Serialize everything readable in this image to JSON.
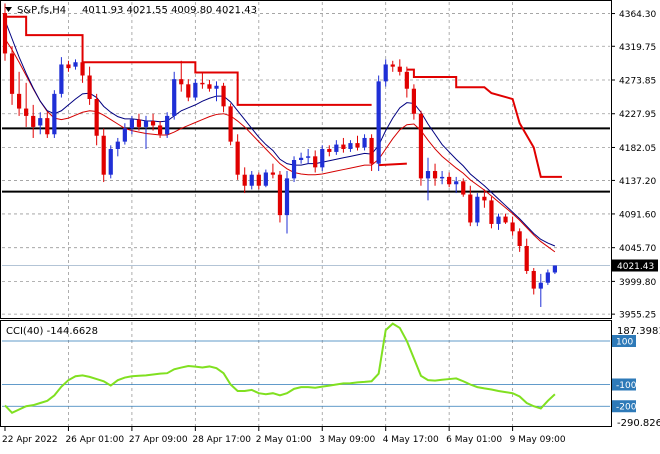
{
  "header": {
    "symbol_label": "S&P,fs,H4",
    "ohlc_label": "4011.93 4021.55 4009.80 4021.43"
  },
  "indicator": {
    "label": "CCI(40) -144.6628",
    "max_label": "187.3981",
    "min_label": "-290.8265"
  },
  "colors": {
    "bull": "#1f2fd6",
    "bear": "#e00000",
    "neutral": "#2a9a2a",
    "ma_fast": "#000080",
    "ma_slow": "#d40000",
    "trail": "#e00000",
    "cci": "#80e020",
    "level_line": "#2e7ab8",
    "grid": "#9a9a9a"
  },
  "chart_data": [
    {
      "type": "candlestick",
      "ylim": [
        3950,
        4380
      ],
      "y_ticks": [
        "4364.30",
        "4319.75",
        "4273.85",
        "4227.95",
        "4182.05",
        "4137.20",
        "4091.60",
        "4045.70",
        "3999.80",
        "3955.25"
      ],
      "current_price_label": "4021.43",
      "current_price": 4021.43,
      "horizontal_levels": [
        4208,
        4122
      ],
      "x_labels": [
        "22 Apr 2022",
        "26 Apr 01:00",
        "27 Apr 09:00",
        "28 Apr 17:00",
        "2 May 01:00",
        "3 May 09:00",
        "4 May 17:00",
        "6 May 01:00",
        "9 May 09:00"
      ],
      "candles": [
        [
          4365,
          4378,
          4300,
          4310
        ],
        [
          4310,
          4320,
          4240,
          4255
        ],
        [
          4255,
          4285,
          4225,
          4235
        ],
        [
          4235,
          4270,
          4210,
          4225
        ],
        [
          4225,
          4240,
          4195,
          4210
        ],
        [
          4212,
          4230,
          4200,
          4222
        ],
        [
          4222,
          4230,
          4195,
          4200
        ],
        [
          4200,
          4260,
          4195,
          4255
        ],
        [
          4255,
          4305,
          4250,
          4295
        ],
        [
          4295,
          4300,
          4285,
          4290
        ],
        [
          4292,
          4302,
          4288,
          4298
        ],
        [
          4298,
          4305,
          4270,
          4280
        ],
        [
          4280,
          4292,
          4240,
          4248
        ],
        [
          4248,
          4255,
          4185,
          4198
        ],
        [
          4198,
          4208,
          4135,
          4145
        ],
        [
          4145,
          4185,
          4140,
          4180
        ],
        [
          4180,
          4195,
          4170,
          4190
        ],
        [
          4190,
          4215,
          4186,
          4208
        ],
        [
          4208,
          4225,
          4200,
          4220
        ],
        [
          4220,
          4228,
          4205,
          4210
        ],
        [
          4210,
          4225,
          4180,
          4218
        ],
        [
          4218,
          4228,
          4205,
          4212
        ],
        [
          4212,
          4218,
          4195,
          4200
        ],
        [
          4200,
          4230,
          4195,
          4225
        ],
        [
          4225,
          4285,
          4220,
          4275
        ],
        [
          4275,
          4300,
          4258,
          4268
        ],
        [
          4268,
          4275,
          4245,
          4250
        ],
        [
          4250,
          4275,
          4246,
          4270
        ],
        [
          4270,
          4285,
          4262,
          4268
        ],
        [
          4268,
          4274,
          4258,
          4262
        ],
        [
          4262,
          4272,
          4245,
          4266
        ],
        [
          4266,
          4270,
          4230,
          4238
        ],
        [
          4238,
          4242,
          4185,
          4190
        ],
        [
          4190,
          4200,
          4138,
          4145
        ],
        [
          4145,
          4155,
          4120,
          4130
        ],
        [
          4130,
          4150,
          4125,
          4145
        ],
        [
          4145,
          4148,
          4125,
          4130
        ],
        [
          4130,
          4152,
          4128,
          4148
        ],
        [
          4148,
          4160,
          4140,
          4145
        ],
        [
          4145,
          4150,
          4080,
          4090
        ],
        [
          4090,
          4150,
          4065,
          4140
        ],
        [
          4140,
          4170,
          4135,
          4165
        ],
        [
          4165,
          4175,
          4160,
          4168
        ],
        [
          4168,
          4180,
          4160,
          4170
        ],
        [
          4170,
          4178,
          4148,
          4155
        ],
        [
          4155,
          4185,
          4150,
          4180
        ],
        [
          4180,
          4185,
          4170,
          4176
        ],
        [
          4176,
          4192,
          4172,
          4186
        ],
        [
          4186,
          4195,
          4175,
          4180
        ],
        [
          4180,
          4192,
          4176,
          4188
        ],
        [
          4188,
          4198,
          4178,
          4182
        ],
        [
          4182,
          4200,
          4178,
          4195
        ],
        [
          4195,
          4200,
          4150,
          4160
        ],
        [
          4160,
          4280,
          4150,
          4272
        ],
        [
          4272,
          4302,
          4265,
          4295
        ],
        [
          4295,
          4300,
          4285,
          4292
        ],
        [
          4292,
          4302,
          4280,
          4285
        ],
        [
          4285,
          4292,
          4250,
          4262
        ],
        [
          4262,
          4268,
          4220,
          4228
        ],
        [
          4228,
          4232,
          4130,
          4140
        ],
        [
          4140,
          4168,
          4110,
          4150
        ],
        [
          4150,
          4160,
          4130,
          4140
        ],
        [
          4140,
          4150,
          4132,
          4142
        ],
        [
          4142,
          4148,
          4128,
          4132
        ],
        [
          4132,
          4142,
          4120,
          4136
        ],
        [
          4136,
          4140,
          4115,
          4118
        ],
        [
          4118,
          4130,
          4075,
          4080
        ],
        [
          4080,
          4120,
          4075,
          4115
        ],
        [
          4115,
          4125,
          4100,
          4110
        ],
        [
          4110,
          4115,
          4072,
          4078
        ],
        [
          4078,
          4092,
          4070,
          4088
        ],
        [
          4088,
          4092,
          4078,
          4080
        ],
        [
          4080,
          4088,
          4062,
          4068
        ],
        [
          4068,
          4072,
          4040,
          4048
        ],
        [
          4048,
          4058,
          4010,
          4014
        ],
        [
          4014,
          4018,
          3982,
          3990
        ],
        [
          3990,
          4010,
          3965,
          3998
        ],
        [
          3998,
          4016,
          3995,
          4012
        ],
        [
          4011.93,
          4021.55,
          4009.8,
          4021.43
        ]
      ],
      "ma_fast": [
        4355,
        4330,
        4305,
        4283,
        4263,
        4245,
        4232,
        4228,
        4232,
        4240,
        4248,
        4255,
        4256,
        4250,
        4238,
        4230,
        4224,
        4221,
        4221,
        4220,
        4218,
        4218,
        4217,
        4218,
        4225,
        4232,
        4236,
        4240,
        4245,
        4249,
        4252,
        4252,
        4244,
        4232,
        4220,
        4208,
        4196,
        4186,
        4178,
        4166,
        4160,
        4158,
        4158,
        4160,
        4160,
        4162,
        4164,
        4166,
        4168,
        4170,
        4172,
        4174,
        4173,
        4185,
        4205,
        4222,
        4236,
        4243,
        4242,
        4230,
        4214,
        4200,
        4186,
        4176,
        4166,
        4157,
        4146,
        4138,
        4130,
        4121,
        4112,
        4103,
        4094,
        4085,
        4075,
        4065,
        4057,
        4052,
        4048
      ],
      "ma_slow": [
        4330,
        4315,
        4298,
        4280,
        4262,
        4245,
        4231,
        4222,
        4220,
        4222,
        4226,
        4230,
        4232,
        4231,
        4226,
        4220,
        4214,
        4208,
        4205,
        4203,
        4201,
        4200,
        4199,
        4199,
        4203,
        4208,
        4212,
        4216,
        4220,
        4224,
        4227,
        4228,
        4225,
        4218,
        4210,
        4200,
        4190,
        4180,
        4170,
        4160,
        4153,
        4148,
        4146,
        4145,
        4145,
        4146,
        4148,
        4150,
        4152,
        4154,
        4156,
        4158,
        4158,
        4166,
        4180,
        4194,
        4206,
        4213,
        4214,
        4205,
        4192,
        4180,
        4170,
        4162,
        4154,
        4147,
        4138,
        4131,
        4124,
        4116,
        4108,
        4100,
        4092,
        4083,
        4073,
        4063,
        4054,
        4047,
        4040
      ],
      "trail_stop": [
        [
          [
            0,
            4360
          ],
          [
            3,
            4360
          ],
          [
            3,
            4335
          ],
          [
            11,
            4335
          ],
          [
            11,
            4298
          ],
          [
            27,
            4298
          ],
          [
            27,
            4284
          ],
          [
            33,
            4284
          ],
          [
            33,
            4240
          ],
          [
            52,
            4240
          ]
        ],
        [
          [
            53,
            4158
          ],
          [
            57,
            4160
          ]
        ],
        [
          [
            57,
            4288
          ],
          [
            58,
            4288
          ],
          [
            58,
            4278
          ],
          [
            64,
            4278
          ],
          [
            64,
            4264
          ],
          [
            68,
            4264
          ],
          [
            69,
            4256
          ],
          [
            72,
            4248
          ],
          [
            73,
            4215
          ],
          [
            75,
            4182
          ],
          [
            76,
            4142
          ],
          [
            79,
            4142
          ]
        ]
      ]
    },
    {
      "type": "line",
      "name": "CCI(40)",
      "ylim": [
        -290.8265,
        187.3981
      ],
      "levels": [
        100,
        -100,
        -200
      ],
      "level_labels": [
        "100",
        "-100",
        "-200"
      ],
      "values": [
        -196,
        -230,
        -215,
        -200,
        -195,
        -185,
        -175,
        -150,
        -110,
        -80,
        -62,
        -58,
        -65,
        -75,
        -85,
        -105,
        -80,
        -68,
        -62,
        -60,
        -58,
        -54,
        -50,
        -48,
        -30,
        -22,
        -15,
        -18,
        -22,
        -17,
        -25,
        -48,
        -100,
        -130,
        -130,
        -125,
        -140,
        -145,
        -140,
        -150,
        -140,
        -120,
        -112,
        -112,
        -115,
        -110,
        -105,
        -100,
        -95,
        -94,
        -90,
        -88,
        -85,
        -50,
        150,
        180,
        160,
        100,
        20,
        -60,
        -80,
        -82,
        -78,
        -75,
        -72,
        -85,
        -100,
        -112,
        -118,
        -123,
        -130,
        -135,
        -140,
        -155,
        -185,
        -200,
        -210,
        -175,
        -145
      ]
    }
  ]
}
